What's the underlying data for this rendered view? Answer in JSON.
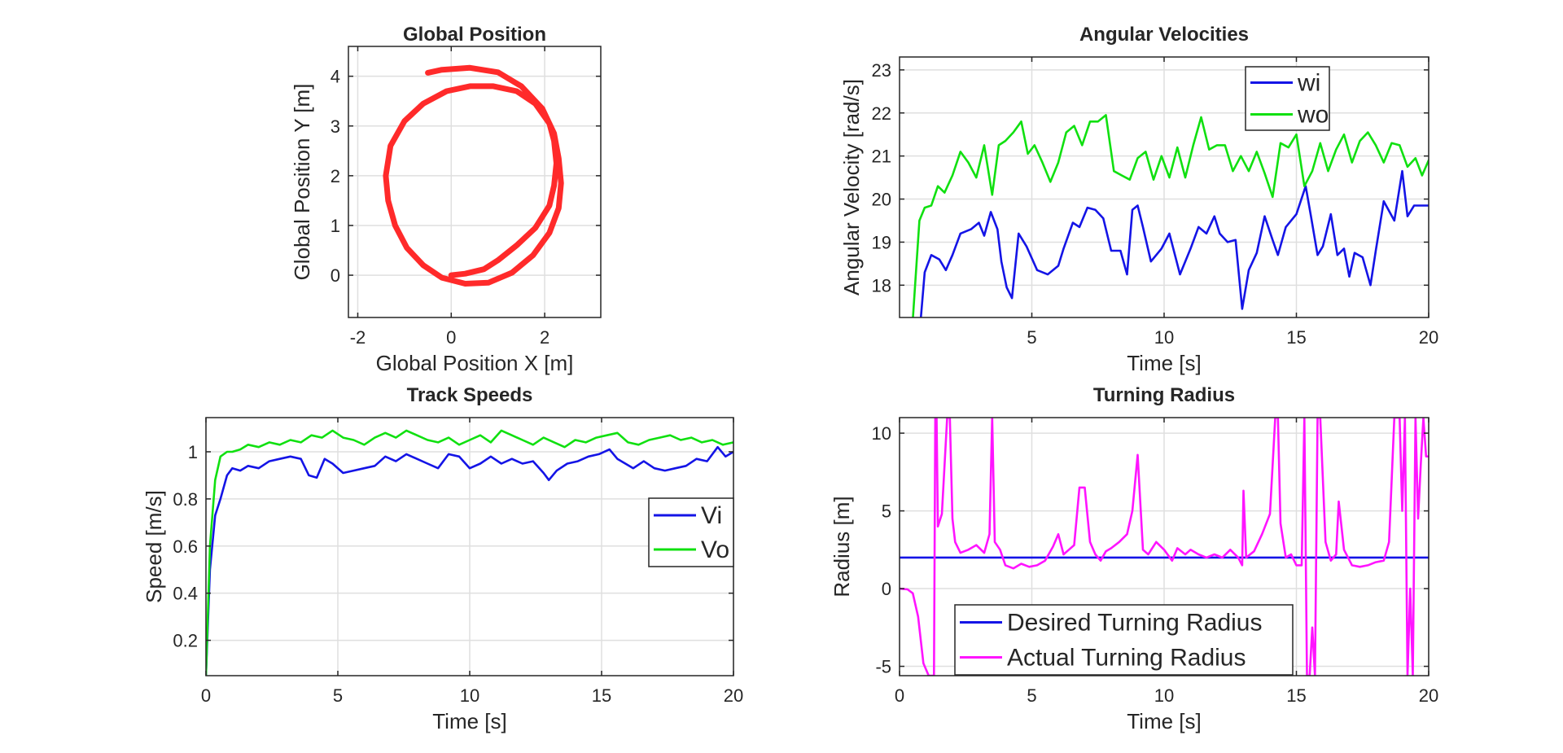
{
  "figure": {
    "background": "#ffffff"
  },
  "chart_data": [
    {
      "id": "global-position",
      "type": "line",
      "title": "Global Position",
      "xlabel": "Global Position X [m]",
      "ylabel": "Global Position Y [m]",
      "xlim": [
        -2.2,
        3.2
      ],
      "ylim": [
        -0.85,
        4.6
      ],
      "xticks": [
        -2,
        0,
        2
      ],
      "yticks": [
        0,
        1,
        2,
        3,
        4
      ],
      "grid": true,
      "series": [
        {
          "color": "#ff2a2a",
          "lineWidth": 7,
          "x": [
            0.0,
            0.3,
            0.7,
            1.0,
            1.4,
            1.8,
            2.1,
            2.2,
            2.25,
            2.2,
            2.1,
            1.8,
            1.4,
            0.9,
            0.4,
            -0.1,
            -0.6,
            -1.0,
            -1.3,
            -1.4,
            -1.35,
            -1.2,
            -0.95,
            -0.6,
            -0.2,
            0.3,
            0.8,
            1.3,
            1.75,
            2.1,
            2.3,
            2.35,
            2.3,
            2.2,
            1.95,
            1.5,
            1.0,
            0.4,
            -0.2,
            -0.5
          ],
          "y": [
            0.0,
            0.03,
            0.12,
            0.3,
            0.6,
            0.95,
            1.4,
            1.8,
            2.25,
            2.7,
            3.05,
            3.45,
            3.7,
            3.8,
            3.8,
            3.7,
            3.45,
            3.1,
            2.6,
            2.0,
            1.5,
            1.0,
            0.55,
            0.2,
            -0.05,
            -0.17,
            -0.15,
            0.05,
            0.4,
            0.85,
            1.35,
            1.85,
            2.35,
            2.85,
            3.35,
            3.8,
            4.08,
            4.17,
            4.13,
            4.07
          ]
        }
      ]
    },
    {
      "id": "angular-velocities",
      "type": "line",
      "title": "Angular Velocities",
      "xlabel": "Time [s]",
      "ylabel": "Angular Velocity [rad/s]",
      "xlim": [
        0,
        20
      ],
      "ylim": [
        17.25,
        23.3
      ],
      "xticks": [
        5,
        10,
        15,
        20
      ],
      "yticks": [
        18,
        19,
        20,
        21,
        22,
        23
      ],
      "grid": true,
      "legend": "top-center",
      "series": [
        {
          "name": "wi",
          "color": "#1414e6",
          "x": [
            0.8,
            0.95,
            1.2,
            1.5,
            1.75,
            2.0,
            2.3,
            2.7,
            3.0,
            3.2,
            3.45,
            3.7,
            3.85,
            4.05,
            4.25,
            4.5,
            4.8,
            5.2,
            5.6,
            6.0,
            6.2,
            6.55,
            6.8,
            7.1,
            7.4,
            7.7,
            8.0,
            8.35,
            8.6,
            8.8,
            9.0,
            9.2,
            9.5,
            9.9,
            10.2,
            10.6,
            11.0,
            11.3,
            11.6,
            11.9,
            12.1,
            12.4,
            12.7,
            12.95,
            13.2,
            13.5,
            13.8,
            14.1,
            14.3,
            14.6,
            15.0,
            15.35,
            15.55,
            15.8,
            16.0,
            16.3,
            16.55,
            16.8,
            17.0,
            17.2,
            17.5,
            17.8,
            18.0,
            18.3,
            18.7,
            19.0,
            19.2,
            19.45,
            19.65,
            20.0
          ],
          "y": [
            17.2,
            18.3,
            18.7,
            18.6,
            18.35,
            18.7,
            19.2,
            19.3,
            19.45,
            19.15,
            19.7,
            19.3,
            18.55,
            17.95,
            17.7,
            19.2,
            18.9,
            18.35,
            18.25,
            18.45,
            18.85,
            19.45,
            19.35,
            19.8,
            19.75,
            19.55,
            18.8,
            18.8,
            18.25,
            19.75,
            19.85,
            19.35,
            18.55,
            18.85,
            19.2,
            18.25,
            18.85,
            19.35,
            19.2,
            19.6,
            19.2,
            19.0,
            19.05,
            17.45,
            18.35,
            18.75,
            19.6,
            19.05,
            18.7,
            19.35,
            19.65,
            20.3,
            19.6,
            18.7,
            18.9,
            19.65,
            18.7,
            18.85,
            18.2,
            18.75,
            18.65,
            18.0,
            18.8,
            19.95,
            19.5,
            20.65,
            19.6,
            19.85,
            19.85,
            19.85
          ]
        },
        {
          "name": "wo",
          "color": "#10e010",
          "x": [
            0.5,
            0.75,
            0.95,
            1.2,
            1.45,
            1.7,
            2.0,
            2.3,
            2.6,
            2.9,
            3.2,
            3.5,
            3.75,
            4.0,
            4.3,
            4.6,
            4.85,
            5.1,
            5.4,
            5.7,
            6.0,
            6.3,
            6.6,
            6.9,
            7.2,
            7.5,
            7.8,
            8.1,
            8.4,
            8.7,
            9.0,
            9.3,
            9.6,
            9.9,
            10.2,
            10.5,
            10.8,
            11.1,
            11.4,
            11.7,
            12.0,
            12.3,
            12.6,
            12.9,
            13.2,
            13.5,
            13.8,
            14.1,
            14.4,
            14.7,
            15.0,
            15.3,
            15.6,
            15.9,
            16.2,
            16.5,
            16.8,
            17.1,
            17.4,
            17.7,
            18.0,
            18.3,
            18.6,
            18.9,
            19.2,
            19.5,
            19.75,
            20.0
          ],
          "y": [
            17.2,
            19.5,
            19.8,
            19.85,
            20.3,
            20.15,
            20.55,
            21.1,
            20.85,
            20.5,
            21.25,
            20.1,
            21.25,
            21.35,
            21.55,
            21.8,
            21.05,
            21.25,
            20.85,
            20.4,
            20.85,
            21.55,
            21.7,
            21.25,
            21.8,
            21.8,
            21.95,
            20.65,
            20.55,
            20.45,
            20.95,
            21.1,
            20.45,
            21.0,
            20.5,
            21.2,
            20.5,
            21.25,
            21.9,
            21.15,
            21.25,
            21.25,
            20.65,
            21.0,
            20.65,
            21.1,
            20.6,
            20.05,
            21.3,
            21.2,
            21.5,
            20.3,
            20.65,
            21.3,
            20.65,
            21.15,
            21.5,
            20.85,
            21.35,
            21.55,
            21.25,
            20.85,
            21.3,
            21.25,
            20.75,
            20.95,
            20.55,
            20.9
          ]
        }
      ]
    },
    {
      "id": "track-speeds",
      "type": "line",
      "title": "Track Speeds",
      "xlabel": "Time [s]",
      "ylabel": "Speed [m/s]",
      "xlim": [
        0,
        20
      ],
      "ylim": [
        0.05,
        1.145
      ],
      "xticks": [
        0,
        5,
        10,
        15,
        20
      ],
      "yticks": [
        0.2,
        0.4,
        0.6,
        0.8,
        1
      ],
      "grid": true,
      "legend": "right",
      "series": [
        {
          "name": "Vi",
          "color": "#1414e6",
          "x": [
            0.0,
            0.15,
            0.35,
            0.55,
            0.8,
            1.0,
            1.3,
            1.6,
            2.0,
            2.4,
            2.8,
            3.2,
            3.6,
            3.9,
            4.2,
            4.5,
            4.8,
            5.2,
            5.6,
            6.0,
            6.4,
            6.8,
            7.2,
            7.6,
            8.0,
            8.4,
            8.8,
            9.2,
            9.6,
            10.0,
            10.4,
            10.8,
            11.2,
            11.6,
            12.0,
            12.4,
            12.8,
            13.0,
            13.3,
            13.7,
            14.1,
            14.5,
            14.9,
            15.3,
            15.6,
            15.9,
            16.2,
            16.6,
            17.0,
            17.4,
            17.8,
            18.2,
            18.6,
            19.0,
            19.4,
            19.7,
            20.0
          ],
          "y": [
            0.05,
            0.5,
            0.73,
            0.8,
            0.9,
            0.93,
            0.92,
            0.94,
            0.93,
            0.96,
            0.97,
            0.98,
            0.97,
            0.9,
            0.89,
            0.97,
            0.95,
            0.91,
            0.92,
            0.93,
            0.94,
            0.98,
            0.96,
            0.99,
            0.97,
            0.95,
            0.93,
            0.99,
            0.98,
            0.93,
            0.95,
            0.98,
            0.95,
            0.97,
            0.95,
            0.96,
            0.91,
            0.88,
            0.92,
            0.95,
            0.96,
            0.98,
            0.99,
            1.01,
            0.97,
            0.95,
            0.93,
            0.96,
            0.93,
            0.92,
            0.93,
            0.94,
            0.97,
            0.96,
            1.02,
            0.98,
            1.0
          ]
        },
        {
          "name": "Vo",
          "color": "#10e010",
          "x": [
            0.0,
            0.15,
            0.35,
            0.55,
            0.8,
            1.0,
            1.3,
            1.6,
            2.0,
            2.4,
            2.8,
            3.2,
            3.6,
            4.0,
            4.4,
            4.8,
            5.2,
            5.6,
            6.0,
            6.4,
            6.8,
            7.2,
            7.6,
            8.0,
            8.4,
            8.8,
            9.2,
            9.6,
            10.0,
            10.4,
            10.8,
            11.2,
            11.6,
            12.0,
            12.4,
            12.8,
            13.2,
            13.6,
            14.0,
            14.4,
            14.8,
            15.2,
            15.6,
            16.0,
            16.4,
            16.8,
            17.2,
            17.6,
            18.0,
            18.4,
            18.8,
            19.2,
            19.6,
            20.0
          ],
          "y": [
            0.05,
            0.6,
            0.88,
            0.98,
            1.0,
            1.0,
            1.01,
            1.03,
            1.02,
            1.04,
            1.03,
            1.05,
            1.04,
            1.07,
            1.06,
            1.09,
            1.06,
            1.05,
            1.03,
            1.06,
            1.08,
            1.06,
            1.09,
            1.07,
            1.05,
            1.04,
            1.06,
            1.03,
            1.05,
            1.07,
            1.04,
            1.09,
            1.07,
            1.05,
            1.03,
            1.06,
            1.04,
            1.02,
            1.05,
            1.04,
            1.06,
            1.07,
            1.08,
            1.04,
            1.03,
            1.05,
            1.06,
            1.07,
            1.05,
            1.06,
            1.04,
            1.05,
            1.03,
            1.04
          ]
        }
      ]
    },
    {
      "id": "turning-radius",
      "type": "line",
      "title": "Turning Radius",
      "xlabel": "Time [s]",
      "ylabel": "Radius [m]",
      "xlim": [
        0,
        20
      ],
      "ylim": [
        -5.6,
        11.0
      ],
      "xticks": [
        0,
        5,
        10,
        15,
        20
      ],
      "yticks": [
        -5,
        0,
        5,
        10
      ],
      "grid": true,
      "legend": "bottom-left",
      "series": [
        {
          "name": "Desired Turning Radius",
          "color": "#1414e6",
          "x": [
            0,
            20
          ],
          "y": [
            2,
            2
          ]
        },
        {
          "name": "Actual Turning Radius",
          "color": "#ff14ff",
          "x": [
            0.0,
            0.3,
            0.5,
            0.7,
            0.9,
            1.1,
            1.3,
            1.35,
            1.4,
            1.45,
            1.6,
            1.8,
            1.9,
            2.0,
            2.1,
            2.3,
            2.6,
            2.9,
            3.2,
            3.4,
            3.5,
            3.6,
            3.8,
            4.0,
            4.3,
            4.6,
            4.9,
            5.2,
            5.5,
            5.8,
            6.0,
            6.2,
            6.4,
            6.6,
            6.8,
            7.0,
            7.2,
            7.4,
            7.6,
            7.8,
            8.0,
            8.3,
            8.6,
            8.8,
            9.0,
            9.2,
            9.4,
            9.7,
            10.0,
            10.3,
            10.5,
            10.8,
            11.0,
            11.3,
            11.6,
            11.9,
            12.2,
            12.5,
            12.8,
            12.95,
            13.0,
            13.1,
            13.4,
            13.7,
            14.0,
            14.2,
            14.3,
            14.4,
            14.6,
            14.8,
            15.0,
            15.2,
            15.3,
            15.4,
            15.5,
            15.6,
            15.7,
            15.8,
            15.9,
            16.1,
            16.3,
            16.5,
            16.6,
            16.8,
            17.1,
            17.4,
            17.7,
            18.0,
            18.3,
            18.5,
            18.7,
            18.9,
            19.0,
            19.1,
            19.2,
            19.3,
            19.4,
            19.5,
            19.6,
            19.7,
            19.8,
            19.9,
            20.0
          ],
          "y": [
            0.0,
            -0.05,
            -0.3,
            -1.8,
            -4.8,
            -5.6,
            -5.6,
            11.0,
            11.0,
            4.0,
            4.8,
            11.0,
            11.0,
            4.5,
            3.0,
            2.3,
            2.5,
            2.8,
            2.3,
            3.5,
            11.0,
            3.0,
            2.5,
            1.5,
            1.3,
            1.6,
            1.4,
            1.5,
            1.8,
            2.7,
            3.5,
            2.2,
            2.5,
            2.8,
            6.5,
            6.5,
            3.0,
            2.2,
            1.8,
            2.4,
            2.6,
            3.0,
            3.5,
            5.0,
            8.6,
            2.5,
            2.2,
            3.0,
            2.5,
            1.8,
            2.6,
            2.2,
            2.5,
            2.2,
            2.0,
            2.2,
            2.0,
            2.5,
            2.0,
            1.5,
            6.3,
            2.0,
            2.4,
            3.5,
            4.8,
            11.0,
            11.0,
            4.2,
            2.0,
            2.2,
            1.5,
            1.5,
            11.0,
            -5.6,
            -5.6,
            -2.5,
            -5.6,
            11.0,
            11.0,
            3.0,
            1.8,
            2.2,
            5.6,
            2.5,
            1.5,
            1.4,
            1.5,
            1.7,
            1.8,
            3.0,
            11.0,
            11.0,
            5.0,
            11.0,
            -5.6,
            0.0,
            -5.6,
            11.0,
            4.5,
            8.0,
            11.0,
            8.5,
            8.5
          ]
        }
      ]
    }
  ]
}
